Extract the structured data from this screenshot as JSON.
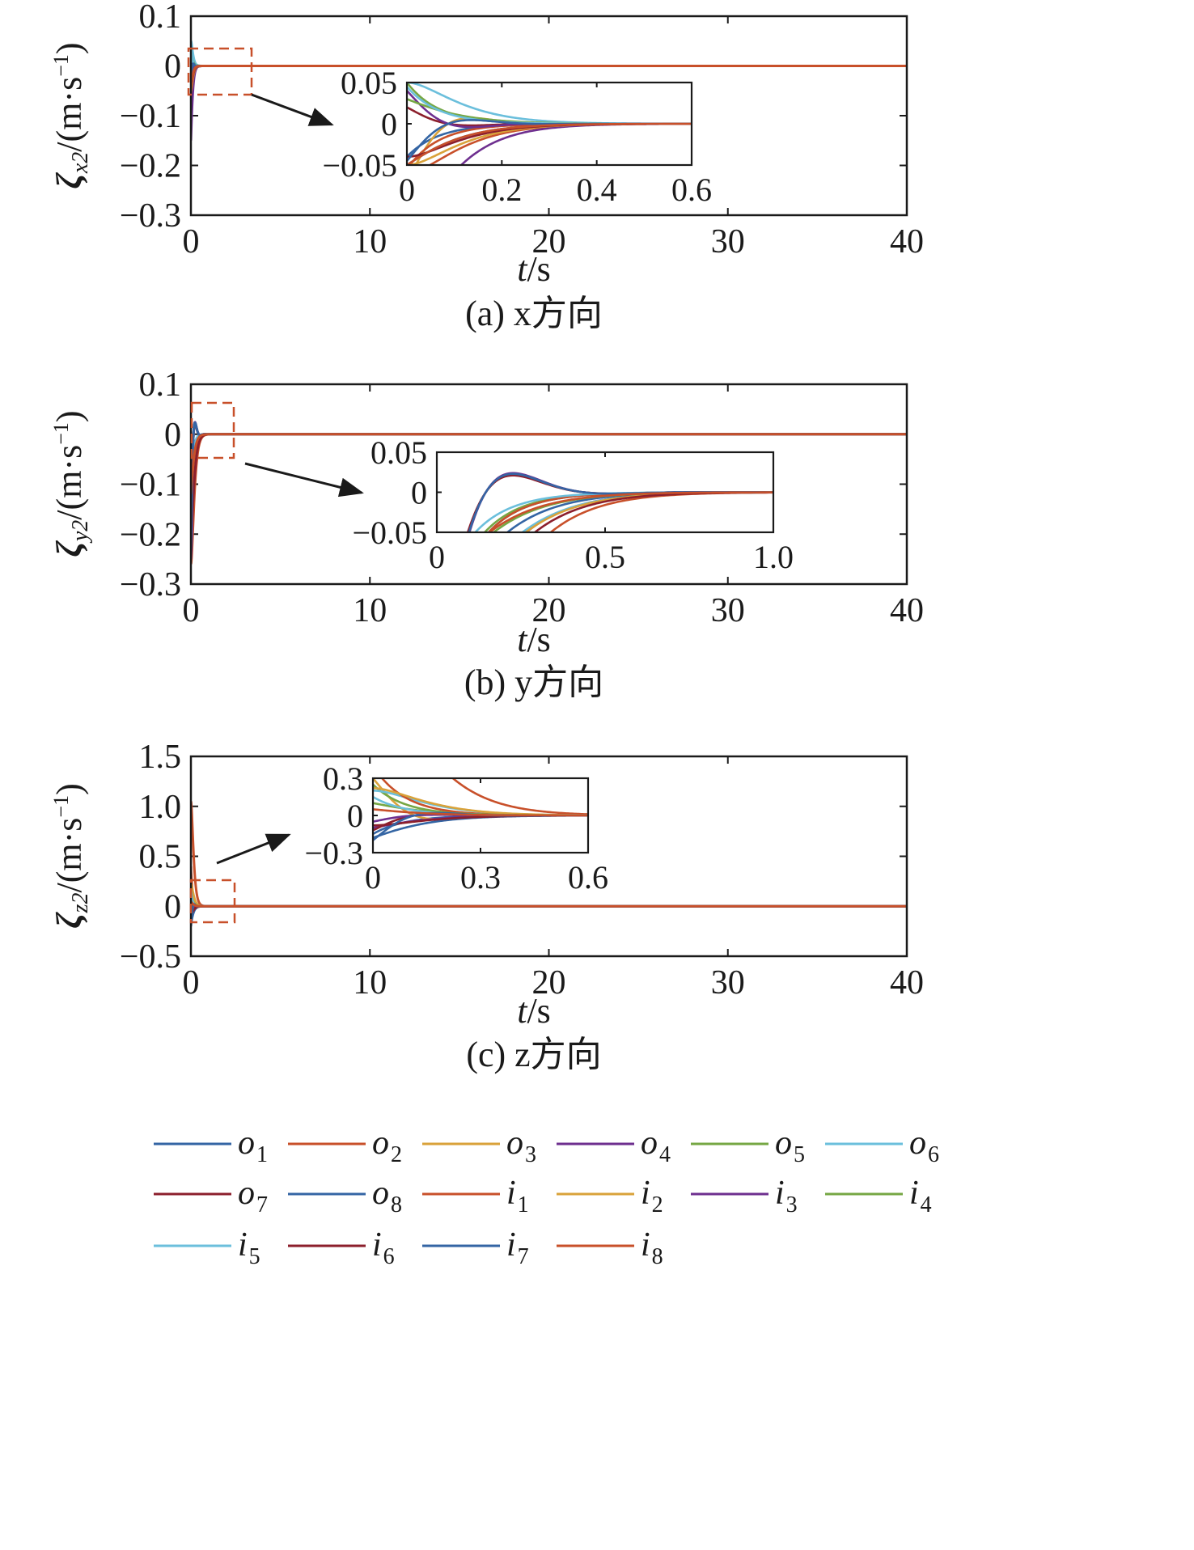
{
  "chart_data": [
    {
      "type": "line",
      "caption": "(a) x方向",
      "ylabel": "ζx2/(m·s−1)",
      "ylabel_parts": {
        "sym": "ζ",
        "sub": "x2",
        "unit": "/(m·s",
        "sup": "−1",
        "close": ")"
      },
      "xlabel": "t/s",
      "xlim": [
        0,
        40
      ],
      "ylim": [
        -0.3,
        0.1
      ],
      "xticks": [
        0,
        10,
        20,
        30,
        40
      ],
      "xtick_labels": [
        "0",
        "10",
        "20",
        "30",
        "40"
      ],
      "yticks": [
        -0.3,
        -0.2,
        -0.1,
        0,
        0.1
      ],
      "ytick_labels": [
        "−0.3",
        "−0.2",
        "−0.1",
        "0",
        "0.1"
      ],
      "initial_values": [
        -0.04,
        -0.06,
        -0.07,
        -0.15,
        0.05,
        0.05,
        0.02,
        -0.05,
        -0.055,
        -0.05,
        0.04,
        0.03,
        0.045,
        -0.04,
        -0.045,
        -0.05
      ],
      "settling_time": 0.3,
      "inset": {
        "xlim": [
          0,
          0.6
        ],
        "ylim": [
          -0.05,
          0.05
        ],
        "xticks": [
          0,
          0.2,
          0.4,
          0.6
        ],
        "xtick_labels": [
          "0",
          "0.2",
          "0.4",
          "0.6"
        ],
        "yticks": [
          -0.05,
          0,
          0.05
        ],
        "ytick_labels": [
          "−0.05",
          "0",
          "0.05"
        ]
      }
    },
    {
      "type": "line",
      "caption": "(b) y方向",
      "ylabel": "ζy2/(m·s−1)",
      "ylabel_parts": {
        "sym": "ζ",
        "sub": "y2",
        "unit": "/(m·s",
        "sup": "−1",
        "close": ")"
      },
      "xlabel": "t/s",
      "xlim": [
        0,
        40
      ],
      "ylim": [
        -0.3,
        0.1
      ],
      "xticks": [
        0,
        10,
        20,
        30,
        40
      ],
      "xtick_labels": [
        "0",
        "10",
        "20",
        "30",
        "40"
      ],
      "yticks": [
        -0.3,
        -0.2,
        -0.1,
        0,
        0.1
      ],
      "ytick_labels": [
        "−0.3",
        "−0.2",
        "−0.1",
        "0",
        "0.1"
      ],
      "initial_values": [
        -0.2,
        -0.26,
        -0.22,
        -0.25,
        -0.18,
        -0.15,
        -0.21,
        -0.17,
        -0.2,
        -0.16,
        -0.24,
        -0.13,
        -0.14,
        -0.19,
        -0.23,
        -0.12
      ],
      "settling_time": 0.5,
      "inset": {
        "xlim": [
          0,
          1.0
        ],
        "ylim": [
          -0.05,
          0.05
        ],
        "xticks": [
          0,
          0.5,
          1.0
        ],
        "xtick_labels": [
          "0",
          "0.5",
          "1.0"
        ],
        "yticks": [
          -0.05,
          0,
          0.05
        ],
        "ytick_labels": [
          "−0.05",
          "0",
          "0.05"
        ]
      }
    },
    {
      "type": "line",
      "caption": "(c) z方向",
      "ylabel": "ζz2/(m·s−1)",
      "ylabel_parts": {
        "sym": "ζ",
        "sub": "z2",
        "unit": "/(m·s",
        "sup": "−1",
        "close": ")"
      },
      "xlabel": "t/s",
      "xlim": [
        0,
        40
      ],
      "ylim": [
        -0.5,
        1.5
      ],
      "xticks": [
        0,
        10,
        20,
        30,
        40
      ],
      "xtick_labels": [
        "0",
        "10",
        "20",
        "30",
        "40"
      ],
      "yticks": [
        -0.5,
        0,
        0.5,
        1.0,
        1.5
      ],
      "ytick_labels": [
        "−0.5",
        "0",
        "0.5",
        "1.0",
        "1.5"
      ],
      "initial_values": [
        -0.15,
        1.05,
        0.3,
        -0.1,
        0.25,
        0.2,
        -0.12,
        -0.18,
        0.4,
        0.22,
        -0.05,
        0.1,
        0.15,
        -0.08,
        -0.2,
        0.05
      ],
      "settling_time": 0.4,
      "inset": {
        "xlim": [
          0,
          0.6
        ],
        "ylim": [
          -0.3,
          0.3
        ],
        "xticks": [
          0,
          0.3,
          0.6
        ],
        "xtick_labels": [
          "0",
          "0.3",
          "0.6"
        ],
        "yticks": [
          -0.3,
          0,
          0.3
        ],
        "ytick_labels": [
          "−0.3",
          "0",
          "0.3"
        ]
      }
    }
  ],
  "legend": {
    "items": [
      {
        "base": "o",
        "sub": "1",
        "color": "#3465a4"
      },
      {
        "base": "o",
        "sub": "2",
        "color": "#c8502a"
      },
      {
        "base": "o",
        "sub": "3",
        "color": "#d9a23a"
      },
      {
        "base": "o",
        "sub": "4",
        "color": "#6e2f8f"
      },
      {
        "base": "o",
        "sub": "5",
        "color": "#76a744"
      },
      {
        "base": "o",
        "sub": "6",
        "color": "#6bbfdc"
      },
      {
        "base": "o",
        "sub": "7",
        "color": "#8c1f2c"
      },
      {
        "base": "o",
        "sub": "8",
        "color": "#3465a4"
      },
      {
        "base": "i",
        "sub": "1",
        "color": "#c8502a"
      },
      {
        "base": "i",
        "sub": "2",
        "color": "#d9a23a"
      },
      {
        "base": "i",
        "sub": "3",
        "color": "#6e2f8f"
      },
      {
        "base": "i",
        "sub": "4",
        "color": "#76a744"
      },
      {
        "base": "i",
        "sub": "5",
        "color": "#6bbfdc"
      },
      {
        "base": "i",
        "sub": "6",
        "color": "#8c1f2c"
      },
      {
        "base": "i",
        "sub": "7",
        "color": "#3465a4"
      },
      {
        "base": "i",
        "sub": "8",
        "color": "#c8502a"
      }
    ]
  },
  "colors": {
    "zoom_box": "#c8502a",
    "axis": "#1a1a1a",
    "arrow": "#1a1a1a"
  }
}
